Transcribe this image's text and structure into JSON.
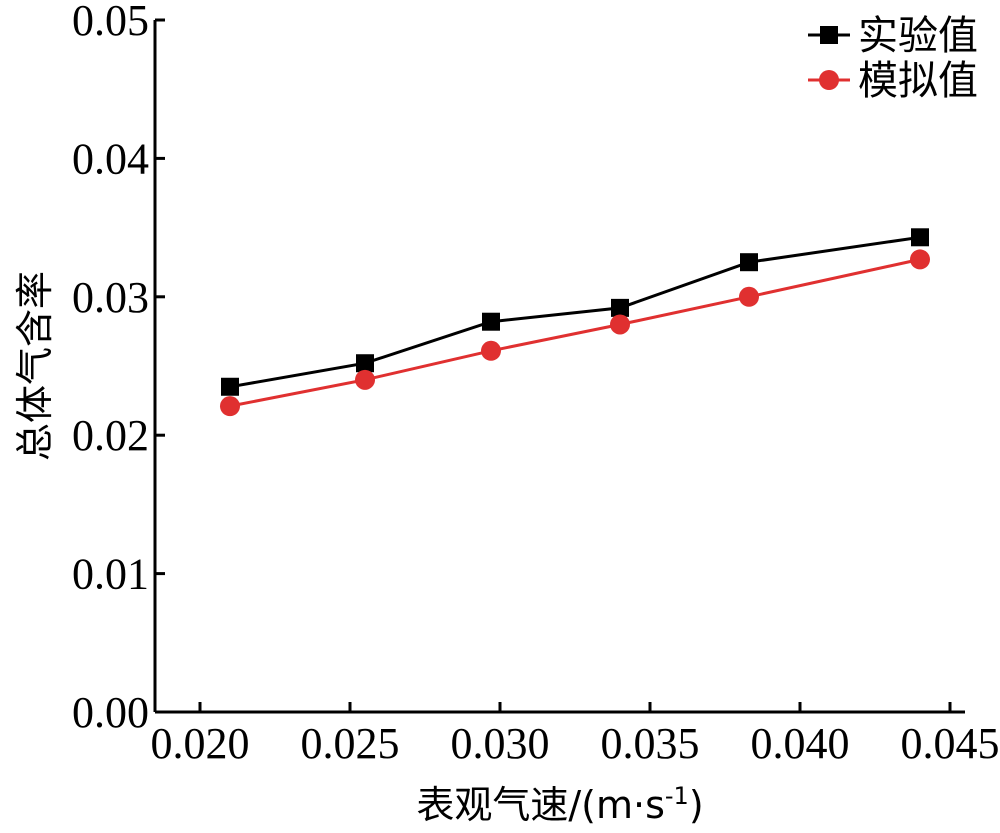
{
  "chart_data": {
    "type": "line",
    "title": "",
    "xlabel": "表观气速/(m·s",
    "xlabel_sup": "-1",
    "xlabel_end": ")",
    "ylabel": "总体气含率",
    "xlim": [
      0.0185,
      0.0455
    ],
    "ylim": [
      0,
      0.05
    ],
    "x_ticks": [
      0.02,
      0.025,
      0.03,
      0.035,
      0.04,
      0.045
    ],
    "x_tick_labels": [
      "0.020",
      "0.025",
      "0.030",
      "0.035",
      "0.040",
      "0.045"
    ],
    "y_ticks": [
      0.0,
      0.01,
      0.02,
      0.03,
      0.04,
      0.05
    ],
    "y_tick_labels": [
      "0.00",
      "0.01",
      "0.02",
      "0.03",
      "0.04",
      "0.05"
    ],
    "grid": false,
    "legend_position": "top-right",
    "series": [
      {
        "name": "实验值",
        "color": "#000000",
        "marker": "square",
        "x": [
          0.021,
          0.0255,
          0.0297,
          0.034,
          0.0383,
          0.044
        ],
        "y": [
          0.0235,
          0.0252,
          0.0282,
          0.0292,
          0.0325,
          0.0343
        ]
      },
      {
        "name": "模拟值",
        "color": "#e03030",
        "marker": "circle",
        "x": [
          0.021,
          0.0255,
          0.0297,
          0.034,
          0.0383,
          0.044
        ],
        "y": [
          0.0221,
          0.024,
          0.0261,
          0.028,
          0.03,
          0.0327
        ]
      }
    ]
  }
}
